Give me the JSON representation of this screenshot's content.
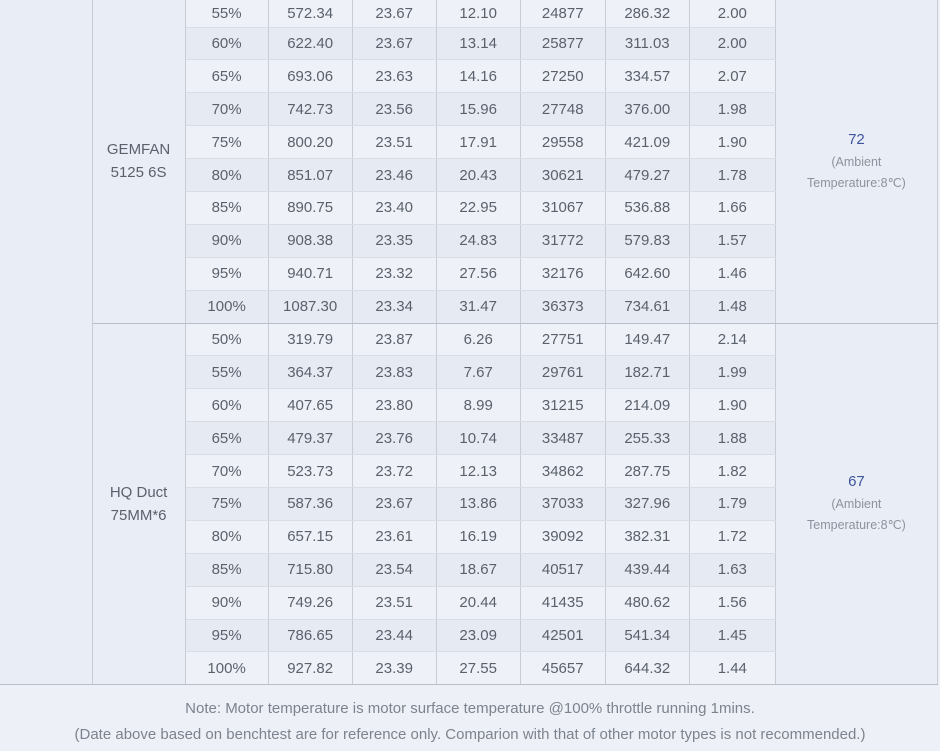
{
  "table": {
    "groups": [
      {
        "name_lines": [
          "GEMFAN",
          "5125 6S"
        ],
        "temperature": {
          "value": "72",
          "note_lines": [
            "(Ambient",
            "Temperature:8℃)"
          ]
        },
        "rows": [
          [
            "55%",
            "572.34",
            "23.67",
            "12.10",
            "24877",
            "286.32",
            "2.00"
          ],
          [
            "60%",
            "622.40",
            "23.67",
            "13.14",
            "25877",
            "311.03",
            "2.00"
          ],
          [
            "65%",
            "693.06",
            "23.63",
            "14.16",
            "27250",
            "334.57",
            "2.07"
          ],
          [
            "70%",
            "742.73",
            "23.56",
            "15.96",
            "27748",
            "376.00",
            "1.98"
          ],
          [
            "75%",
            "800.20",
            "23.51",
            "17.91",
            "29558",
            "421.09",
            "1.90"
          ],
          [
            "80%",
            "851.07",
            "23.46",
            "20.43",
            "30621",
            "479.27",
            "1.78"
          ],
          [
            "85%",
            "890.75",
            "23.40",
            "22.95",
            "31067",
            "536.88",
            "1.66"
          ],
          [
            "90%",
            "908.38",
            "23.35",
            "24.83",
            "31772",
            "579.83",
            "1.57"
          ],
          [
            "95%",
            "940.71",
            "23.32",
            "27.56",
            "32176",
            "642.60",
            "1.46"
          ],
          [
            "100%",
            "1087.30",
            "23.34",
            "31.47",
            "36373",
            "734.61",
            "1.48"
          ]
        ]
      },
      {
        "name_lines": [
          "HQ Duct",
          "75MM*6"
        ],
        "temperature": {
          "value": "67",
          "note_lines": [
            "(Ambient",
            "Temperature:8℃)"
          ]
        },
        "rows": [
          [
            "50%",
            "319.79",
            "23.87",
            "6.26",
            "27751",
            "149.47",
            "2.14"
          ],
          [
            "55%",
            "364.37",
            "23.83",
            "7.67",
            "29761",
            "182.71",
            "1.99"
          ],
          [
            "60%",
            "407.65",
            "23.80",
            "8.99",
            "31215",
            "214.09",
            "1.90"
          ],
          [
            "65%",
            "479.37",
            "23.76",
            "10.74",
            "33487",
            "255.33",
            "1.88"
          ],
          [
            "70%",
            "523.73",
            "23.72",
            "12.13",
            "34862",
            "287.75",
            "1.82"
          ],
          [
            "75%",
            "587.36",
            "23.67",
            "13.86",
            "37033",
            "327.96",
            "1.79"
          ],
          [
            "80%",
            "657.15",
            "23.61",
            "16.19",
            "39092",
            "382.31",
            "1.72"
          ],
          [
            "85%",
            "715.80",
            "23.54",
            "18.67",
            "40517",
            "439.44",
            "1.63"
          ],
          [
            "90%",
            "749.26",
            "23.51",
            "20.44",
            "41435",
            "480.62",
            "1.56"
          ],
          [
            "95%",
            "786.65",
            "23.44",
            "23.09",
            "42501",
            "541.34",
            "1.45"
          ],
          [
            "100%",
            "927.82",
            "23.39",
            "27.55",
            "45657",
            "644.32",
            "1.44"
          ]
        ]
      }
    ]
  },
  "footer": {
    "line1": "Note: Motor temperature is motor surface temperature @100% throttle running 1mins.",
    "line2": "(Date above based on benchtest are for reference only. Comparion with that of other motor types is not recommended.)"
  },
  "colors": {
    "temp_value_color": "#3e549d",
    "row_light": "#eef2f8",
    "row_dark": "#e6ebf3",
    "side_background": "#e9eef6"
  }
}
